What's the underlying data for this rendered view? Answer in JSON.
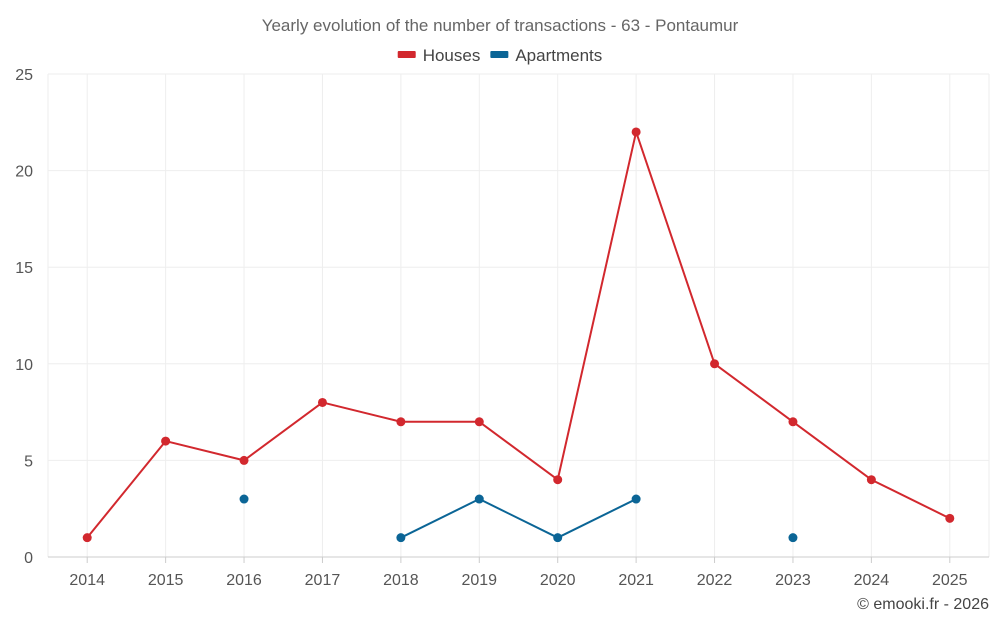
{
  "chart_data": {
    "type": "line",
    "title": "Yearly evolution of the number of transactions - 63 - Pontaumur",
    "categories": [
      "2014",
      "2015",
      "2016",
      "2017",
      "2018",
      "2019",
      "2020",
      "2021",
      "2022",
      "2023",
      "2024",
      "2025"
    ],
    "ylim": [
      0,
      25
    ],
    "yticks": [
      0,
      5,
      10,
      15,
      20,
      25
    ],
    "grid": true,
    "legend_position": "top-center",
    "series": [
      {
        "name": "Houses",
        "color": "#d2282e",
        "values": [
          1,
          6,
          5,
          8,
          7,
          7,
          4,
          22,
          10,
          7,
          4,
          2
        ]
      },
      {
        "name": "Apartments",
        "color": "#0b6596",
        "values": [
          null,
          null,
          3,
          null,
          1,
          3,
          1,
          3,
          null,
          1,
          null,
          null
        ]
      }
    ]
  },
  "credit": "© emooki.fr - 2026"
}
